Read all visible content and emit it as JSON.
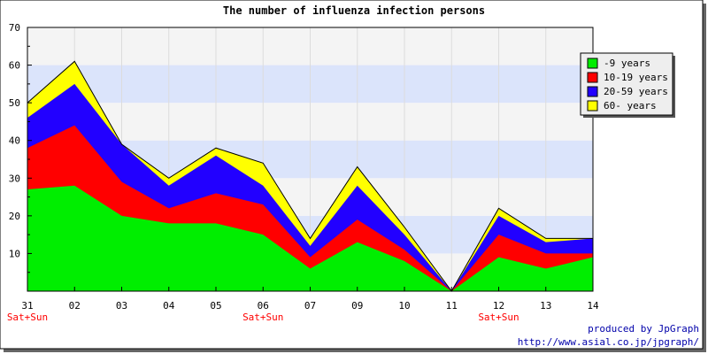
{
  "chart_data": {
    "type": "area",
    "stacked": true,
    "title": "The number of influenza infection persons",
    "xlabel": "",
    "ylabel": "",
    "categories": [
      "31",
      "02",
      "03",
      "04",
      "05",
      "06",
      "07",
      "09",
      "10",
      "11",
      "12",
      "13",
      "14"
    ],
    "weekend_labels": [
      "Sat+Sun",
      "",
      "",
      "",
      "",
      "Sat+Sun",
      "",
      "",
      "",
      "",
      "Sat+Sun",
      "",
      ""
    ],
    "ylim": [
      0,
      70
    ],
    "yticks": [
      10,
      20,
      30,
      40,
      50,
      60,
      70
    ],
    "grid": true,
    "band_colors": [
      "#f4f4f4",
      "#dbe4fb"
    ],
    "legend_position": "top-right",
    "series": [
      {
        "name": "-9 years",
        "color": "#00ee00",
        "values": [
          27,
          28,
          20,
          18,
          18,
          15,
          6,
          13,
          8,
          0,
          9,
          6,
          9
        ]
      },
      {
        "name": "10-19 years",
        "color": "#ff0000",
        "values": [
          11,
          16,
          9,
          4,
          8,
          8,
          3,
          6,
          3,
          0,
          6,
          4,
          1
        ]
      },
      {
        "name": "20-59 years",
        "color": "#2200ff",
        "values": [
          8,
          11,
          10,
          6,
          10,
          5,
          3,
          9,
          4,
          0,
          5,
          3,
          4
        ]
      },
      {
        "name": "60- years",
        "color": "#ffff00",
        "values": [
          4,
          6,
          0,
          2,
          2,
          6,
          2,
          5,
          2,
          0,
          2,
          1,
          0
        ]
      }
    ]
  },
  "footer": {
    "credit": "produced by JpGraph",
    "url": "http://www.asial.co.jp/jpgraph/"
  },
  "colors": {
    "weekend_label": "#ff0000",
    "credit": "#0000aa"
  }
}
